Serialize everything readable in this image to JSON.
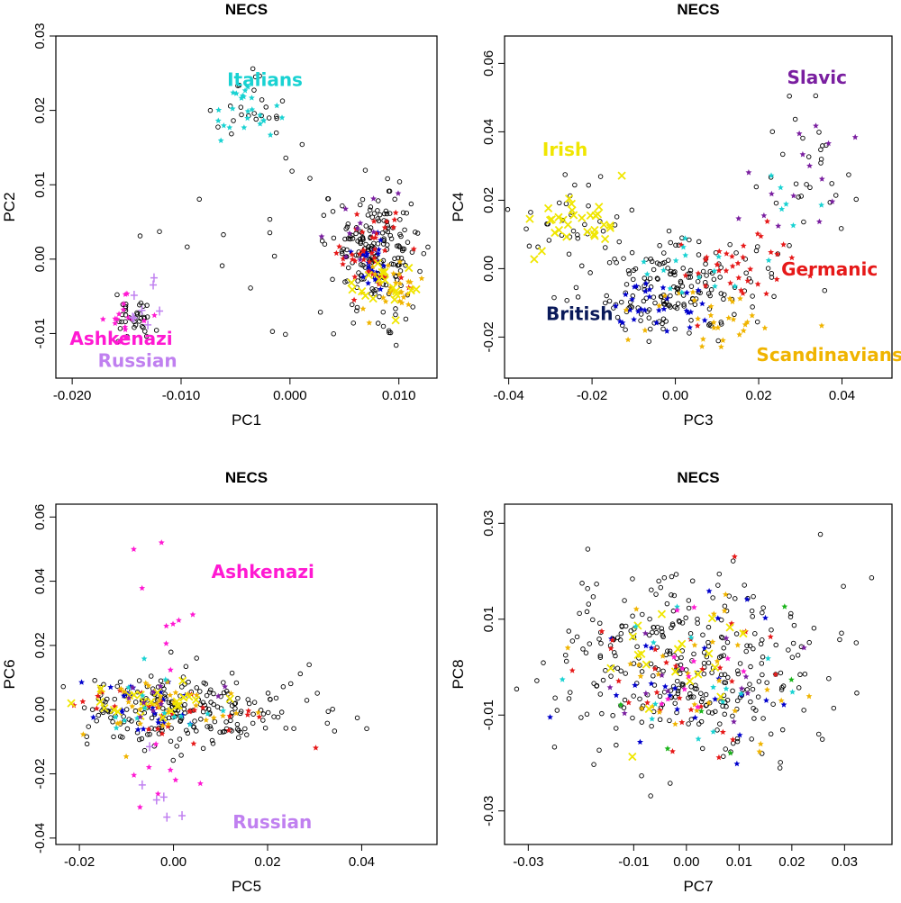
{
  "colors": {
    "background": "#000000",
    "british": "#0000cc",
    "germanic": "#e61919",
    "scandinavian": "#f0b400",
    "irish": "#f0e600",
    "italian": "#19d2d2",
    "slavic": "#7a1fa0",
    "ashkenazi": "#ff19d2",
    "russian": "#c080f0",
    "other_green": "#19b419"
  },
  "chart_data": [
    {
      "type": "scatter",
      "title": "NECS",
      "xlabel": "PC1",
      "ylabel": "PC2",
      "xlim": [
        -0.0215,
        0.0135
      ],
      "ylim": [
        -0.016,
        0.03
      ],
      "xticks": [
        {
          "value": -0.02,
          "label": "-0.020"
        },
        {
          "value": -0.01,
          "label": "-0.010"
        },
        {
          "value": 0.0,
          "label": "0.000"
        },
        {
          "value": 0.01,
          "label": "0.010"
        }
      ],
      "yticks": [
        {
          "value": -0.01,
          "label": "-0.01"
        },
        {
          "value": 0.0,
          "label": "0.00"
        },
        {
          "value": 0.01,
          "label": "0.01"
        },
        {
          "value": 0.02,
          "label": "0.02"
        },
        {
          "value": 0.03,
          "label": "0.03"
        }
      ],
      "annotations": [
        {
          "text": "Italians",
          "x": -0.0023,
          "y": 0.0233,
          "color": "#19d2d2"
        },
        {
          "text": "Ashkenazi",
          "x": -0.0155,
          "y": -0.0115,
          "color": "#ff19d2"
        },
        {
          "text": "Russian",
          "x": -0.014,
          "y": -0.0145,
          "color": "#c080f0"
        }
      ],
      "series": [
        {
          "name": "Other",
          "color": "#000000",
          "clusters": [
            [
              0.008,
              0.001,
              0.002,
              0.004,
              180
            ],
            [
              -0.004,
              0.02,
              0.0015,
              0.0022,
              20
            ],
            [
              0.002,
              0.01,
              0.003,
              0.003,
              20
            ],
            [
              -0.0145,
              -0.008,
              0.001,
              0.0015,
              35
            ],
            [
              -0.005,
              -0.003,
              0.005,
              0.005,
              15
            ]
          ]
        },
        {
          "name": "Italian",
          "color": "#19d2d2",
          "clusters": [
            [
              -0.004,
              0.02,
              0.0015,
              0.0022,
              25
            ]
          ]
        },
        {
          "name": "British",
          "color": "#0000cc",
          "clusters": [
            [
              0.008,
              0.0,
              0.0015,
              0.002,
              25
            ]
          ]
        },
        {
          "name": "Germanic",
          "color": "#e61919",
          "clusters": [
            [
              0.0075,
              0.001,
              0.0018,
              0.0025,
              40
            ]
          ]
        },
        {
          "name": "Scandinavian",
          "color": "#f0b400",
          "clusters": [
            [
              0.0095,
              -0.004,
              0.0012,
              0.002,
              30
            ]
          ]
        },
        {
          "name": "Irish",
          "color": "#f0e600",
          "clusters": [
            [
              0.009,
              -0.003,
              0.0015,
              0.002,
              20
            ]
          ]
        },
        {
          "name": "Slavic",
          "color": "#7a1fa0",
          "clusters": [
            [
              0.006,
              0.004,
              0.002,
              0.003,
              10
            ]
          ]
        },
        {
          "name": "Ashkenazi",
          "color": "#ff19d2",
          "clusters": [
            [
              -0.015,
              -0.008,
              0.001,
              0.0015,
              18
            ]
          ]
        },
        {
          "name": "Russian",
          "color": "#c080f0",
          "clusters": [
            [
              -0.014,
              -0.006,
              0.001,
              0.002,
              8
            ]
          ]
        }
      ]
    },
    {
      "type": "scatter",
      "title": "NECS",
      "xlabel": "PC3",
      "ylabel": "PC4",
      "xlim": [
        -0.041,
        0.052
      ],
      "ylim": [
        -0.032,
        0.068
      ],
      "xticks": [
        {
          "value": -0.04,
          "label": "-0.04"
        },
        {
          "value": -0.02,
          "label": "-0.02"
        },
        {
          "value": 0.0,
          "label": "0.00"
        },
        {
          "value": 0.02,
          "label": "0.02"
        },
        {
          "value": 0.04,
          "label": "0.04"
        }
      ],
      "yticks": [
        {
          "value": -0.02,
          "label": "-0.02"
        },
        {
          "value": 0.0,
          "label": "0.00"
        },
        {
          "value": 0.02,
          "label": "0.02"
        },
        {
          "value": 0.04,
          "label": "0.04"
        },
        {
          "value": 0.06,
          "label": "0.06"
        }
      ],
      "annotations": [
        {
          "text": "Slavic",
          "x": 0.034,
          "y": 0.054,
          "color": "#7a1fa0"
        },
        {
          "text": "Irish",
          "x": -0.0265,
          "y": 0.033,
          "color": "#f0e600"
        },
        {
          "text": "Germanic",
          "x": 0.037,
          "y": -0.002,
          "color": "#e61919"
        },
        {
          "text": "British",
          "x": -0.023,
          "y": -0.015,
          "color": "#0a1a5a"
        },
        {
          "text": "Scandinavians",
          "x": 0.037,
          "y": -0.027,
          "color": "#f0b400"
        }
      ],
      "series": [
        {
          "name": "Other",
          "color": "#000000",
          "clusters": [
            [
              0.0,
              -0.005,
              0.01,
              0.007,
              180
            ],
            [
              -0.025,
              0.015,
              0.006,
              0.006,
              30
            ],
            [
              0.03,
              0.03,
              0.007,
              0.012,
              30
            ]
          ]
        },
        {
          "name": "Irish",
          "color": "#f0e600",
          "clusters": [
            [
              -0.025,
              0.015,
              0.006,
              0.005,
              30
            ]
          ]
        },
        {
          "name": "British",
          "color": "#0000cc",
          "clusters": [
            [
              -0.005,
              -0.01,
              0.006,
              0.005,
              30
            ]
          ]
        },
        {
          "name": "Germanic",
          "color": "#e61919",
          "clusters": [
            [
              0.015,
              0.0,
              0.008,
              0.006,
              35
            ]
          ]
        },
        {
          "name": "Scandinavian",
          "color": "#f0b400",
          "clusters": [
            [
              0.01,
              -0.015,
              0.008,
              0.005,
              30
            ]
          ]
        },
        {
          "name": "Slavic",
          "color": "#7a1fa0",
          "clusters": [
            [
              0.03,
              0.03,
              0.006,
              0.01,
              15
            ]
          ]
        },
        {
          "name": "Italian",
          "color": "#19d2d2",
          "clusters": [
            [
              0.005,
              0.0,
              0.008,
              0.005,
              15
            ],
            [
              0.025,
              0.02,
              0.005,
              0.005,
              6
            ]
          ]
        }
      ]
    },
    {
      "type": "scatter",
      "title": "NECS",
      "xlabel": "PC5",
      "ylabel": "PC6",
      "xlim": [
        -0.025,
        0.056
      ],
      "ylim": [
        -0.042,
        0.064
      ],
      "xticks": [
        {
          "value": -0.02,
          "label": "-0.02"
        },
        {
          "value": 0.0,
          "label": "0.00"
        },
        {
          "value": 0.02,
          "label": "0.02"
        },
        {
          "value": 0.04,
          "label": "0.04"
        }
      ],
      "yticks": [
        {
          "value": -0.04,
          "label": "-0.04"
        },
        {
          "value": -0.02,
          "label": "-0.02"
        },
        {
          "value": 0.0,
          "label": "0.00"
        },
        {
          "value": 0.02,
          "label": "0.02"
        },
        {
          "value": 0.04,
          "label": "0.04"
        },
        {
          "value": 0.06,
          "label": "0.06"
        }
      ],
      "annotations": [
        {
          "text": "Ashkenazi",
          "x": 0.019,
          "y": 0.041,
          "color": "#ff19d2"
        },
        {
          "text": "Russian",
          "x": 0.021,
          "y": -0.037,
          "color": "#c080f0"
        }
      ],
      "series": [
        {
          "name": "Other",
          "color": "#000000",
          "clusters": [
            [
              0.0,
              0.0,
              0.012,
              0.006,
              200
            ],
            [
              0.02,
              0.0,
              0.01,
              0.005,
              30
            ]
          ]
        },
        {
          "name": "British",
          "color": "#0000cc",
          "clusters": [
            [
              -0.005,
              0.0,
              0.008,
              0.005,
              25
            ]
          ]
        },
        {
          "name": "Germanic",
          "color": "#e61919",
          "clusters": [
            [
              -0.002,
              0.0,
              0.01,
              0.005,
              30
            ]
          ]
        },
        {
          "name": "Scandinavian",
          "color": "#f0b400",
          "clusters": [
            [
              0.0,
              0.0,
              0.01,
              0.005,
              35
            ]
          ]
        },
        {
          "name": "Irish",
          "color": "#f0e600",
          "clusters": [
            [
              -0.005,
              0.002,
              0.008,
              0.004,
              25
            ]
          ]
        },
        {
          "name": "Italian",
          "color": "#19d2d2",
          "clusters": [
            [
              -0.005,
              0.0,
              0.008,
              0.005,
              15
            ]
          ]
        },
        {
          "name": "Slavic",
          "color": "#7a1fa0",
          "clusters": [
            [
              0.0,
              0.0,
              0.008,
              0.005,
              10
            ]
          ]
        },
        {
          "name": "Ashkenazi",
          "color": "#ff19d2",
          "clusters": [
            [
              -0.003,
              0.03,
              0.004,
              0.015,
              10
            ],
            [
              -0.003,
              -0.02,
              0.004,
              0.008,
              8
            ]
          ]
        },
        {
          "name": "Russian",
          "color": "#c080f0",
          "clusters": [
            [
              -0.002,
              -0.025,
              0.003,
              0.007,
              6
            ]
          ]
        }
      ]
    },
    {
      "type": "scatter",
      "title": "NECS",
      "xlabel": "PC7",
      "ylabel": "PC8",
      "xlim": [
        -0.0345,
        0.039
      ],
      "ylim": [
        -0.037,
        0.034
      ],
      "xticks": [
        {
          "value": -0.03,
          "label": "-0.03"
        },
        {
          "value": -0.01,
          "label": "-0.01"
        },
        {
          "value": 0.0,
          "label": "0.00"
        },
        {
          "value": 0.01,
          "label": "0.01"
        },
        {
          "value": 0.02,
          "label": "0.02"
        },
        {
          "value": 0.03,
          "label": "0.03"
        }
      ],
      "yticks": [
        {
          "value": -0.03,
          "label": "-0.03"
        },
        {
          "value": -0.01,
          "label": "-0.01"
        },
        {
          "value": 0.01,
          "label": "0.01"
        },
        {
          "value": 0.03,
          "label": "0.03"
        }
      ],
      "annotations": [],
      "series": [
        {
          "name": "Other",
          "color": "#000000",
          "clusters": [
            [
              0.0,
              0.0,
              0.012,
              0.01,
              320
            ]
          ]
        },
        {
          "name": "British",
          "color": "#0000cc",
          "clusters": [
            [
              0.0,
              0.0,
              0.01,
              0.008,
              25
            ]
          ]
        },
        {
          "name": "Germanic",
          "color": "#e61919",
          "clusters": [
            [
              0.0,
              0.0,
              0.01,
              0.008,
              30
            ]
          ]
        },
        {
          "name": "Scandinavian",
          "color": "#f0b400",
          "clusters": [
            [
              0.0,
              0.0,
              0.01,
              0.008,
              30
            ]
          ]
        },
        {
          "name": "Irish",
          "color": "#f0e600",
          "clusters": [
            [
              0.0,
              0.0,
              0.008,
              0.007,
              20
            ]
          ]
        },
        {
          "name": "Italian",
          "color": "#19d2d2",
          "clusters": [
            [
              0.0,
              0.0,
              0.01,
              0.008,
              15
            ]
          ]
        },
        {
          "name": "Slavic",
          "color": "#7a1fa0",
          "clusters": [
            [
              0.0,
              0.0,
              0.01,
              0.008,
              12
            ]
          ]
        },
        {
          "name": "Ashkenazi",
          "color": "#ff19d2",
          "clusters": [
            [
              0.0,
              0.0,
              0.01,
              0.008,
              12
            ]
          ]
        },
        {
          "name": "Green",
          "color": "#19b419",
          "clusters": [
            [
              0.0,
              0.0,
              0.01,
              0.008,
              6
            ]
          ]
        }
      ]
    }
  ]
}
